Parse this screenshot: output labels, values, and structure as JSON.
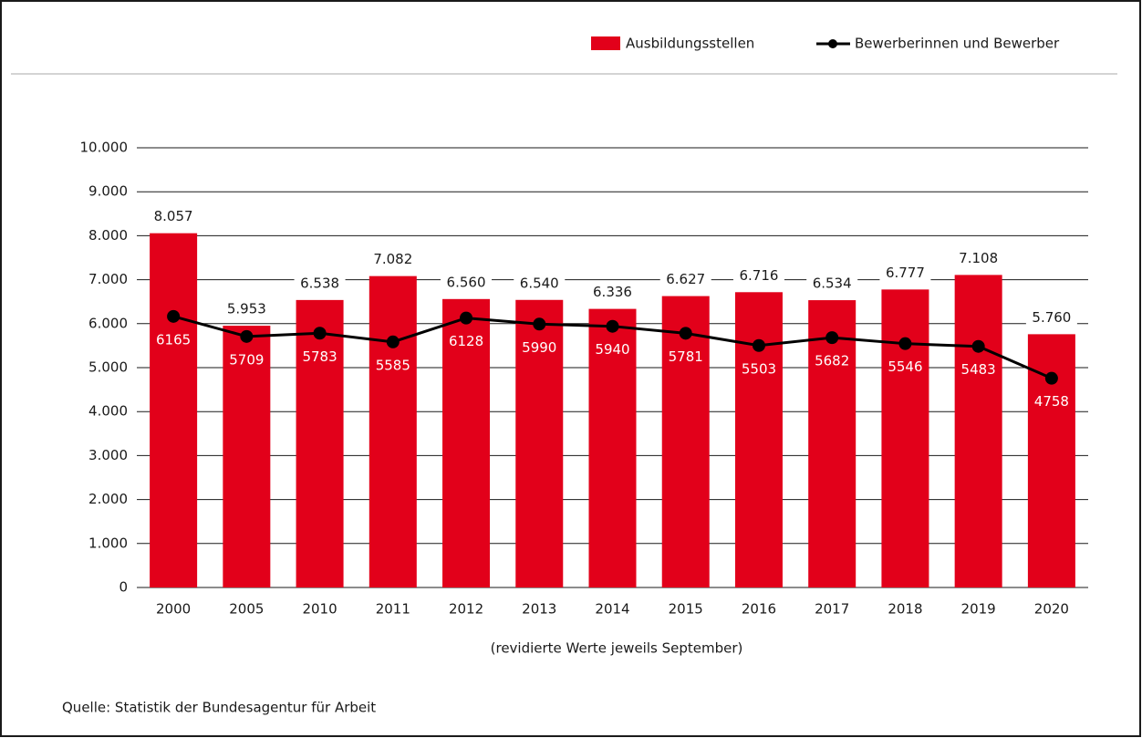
{
  "chart_data": {
    "type": "bar",
    "categories": [
      "2000",
      "2005",
      "2010",
      "2011",
      "2012",
      "2013",
      "2014",
      "2015",
      "2016",
      "2017",
      "2018",
      "2019",
      "2020"
    ],
    "series": [
      {
        "name": "Ausbildungsstellen",
        "type": "bar",
        "color": "#e2001a",
        "values": [
          8057,
          5953,
          6538,
          7082,
          6560,
          6540,
          6336,
          6627,
          6716,
          6534,
          6777,
          7108,
          5760
        ],
        "value_labels": [
          "8.057",
          "5.953",
          "6.538",
          "7.082",
          "6.560",
          "6.540",
          "6.336",
          "6.627",
          "6.716",
          "6.534",
          "6.777",
          "7.108",
          "5.760"
        ]
      },
      {
        "name": "Bewerberinnen und Bewerber",
        "type": "line",
        "color": "#000000",
        "values": [
          6165,
          5709,
          5783,
          5585,
          6128,
          5990,
          5940,
          5781,
          5503,
          5682,
          5546,
          5483,
          4758
        ]
      }
    ],
    "ylim": [
      0,
      10000
    ],
    "yticks": [
      0,
      {
        "value": 1000,
        "label": "1.000"
      },
      {
        "value": 2000,
        "label": "2.000"
      },
      {
        "value": 3000,
        "label": "3.000"
      },
      {
        "value": 4000,
        "label": "4.000"
      },
      {
        "value": 5000,
        "label": "5.000"
      },
      {
        "value": 6000,
        "label": "6.000"
      },
      {
        "value": 7000,
        "label": "7.000"
      },
      {
        "value": 8000,
        "label": "8.000"
      },
      {
        "value": 9000,
        "label": "9.000"
      },
      {
        "value": 10000,
        "label": "10.000"
      }
    ],
    "grid": true,
    "x_note": "(revidierte Werte jeweils September)",
    "source": "Quelle: Statistik der Bundesagentur für Arbeit"
  }
}
